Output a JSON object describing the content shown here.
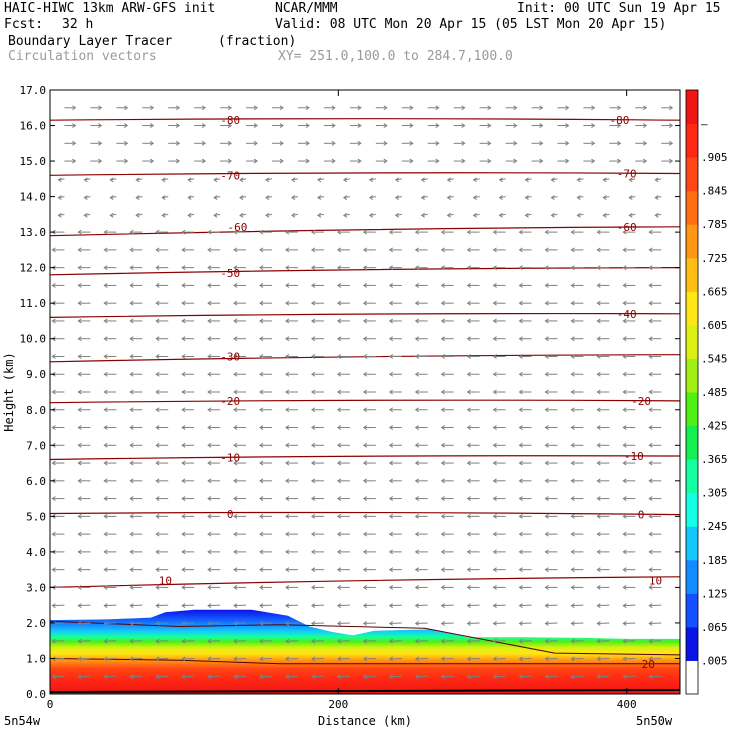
{
  "header": {
    "model": "HAIC-HIWC 13km ARW-GFS init",
    "org": "NCAR/MMM",
    "init": "Init: 00 UTC Sun 19 Apr 15",
    "fcst_label": "Fcst:",
    "fcst_value": "32 h",
    "valid": "Valid: 08 UTC Mon 20 Apr 15 (05 LST Mon 20 Apr 15)",
    "field": "Boundary Layer Tracer",
    "units": "(fraction)",
    "vectors": "Circulation vectors",
    "xy": "XY= 251.0,100.0 to 284.7,100.0"
  },
  "chart_data": {
    "type": "heatmap",
    "xlabel": "Distance (km)",
    "ylabel": "Height (km)",
    "xlim": [
      0,
      437
    ],
    "ylim": [
      0,
      17
    ],
    "x_ticks": [
      "0",
      "200",
      "400"
    ],
    "y_ticks": [
      "0.0",
      "1.0",
      "2.0",
      "3.0",
      "4.0",
      "5.0",
      "6.0",
      "7.0",
      "8.0",
      "9.0",
      "10.0",
      "11.0",
      "12.0",
      "13.0",
      "14.0",
      "15.0",
      "16.0",
      "17.0"
    ],
    "x_start_label": "5n54w",
    "x_end_label": "5n50w",
    "colorbar": {
      "labels": [
        ".005",
        ".065",
        ".125",
        ".185",
        ".245",
        ".305",
        ".365",
        ".425",
        ".485",
        ".545",
        ".605",
        ".665",
        ".725",
        ".785",
        ".845",
        ".905",
        "–"
      ],
      "colors": [
        "#ffffff",
        "#0a14e6",
        "#1450ff",
        "#148cff",
        "#14c8ff",
        "#14ffe6",
        "#14ffa0",
        "#14f050",
        "#50f014",
        "#a0f014",
        "#dcf014",
        "#ffe614",
        "#ffbe14",
        "#ff9614",
        "#ff6e14",
        "#ff4614",
        "#ff2814",
        "#f01414"
      ]
    },
    "boundary_top_km": [
      [
        0,
        2.08
      ],
      [
        40,
        2.1
      ],
      [
        70,
        2.15
      ],
      [
        80,
        2.3
      ],
      [
        100,
        2.37
      ],
      [
        140,
        2.37
      ],
      [
        165,
        2.2
      ],
      [
        180,
        1.9
      ],
      [
        195,
        1.75
      ],
      [
        210,
        1.65
      ],
      [
        225,
        1.78
      ],
      [
        245,
        1.8
      ],
      [
        265,
        1.82
      ],
      [
        290,
        1.6
      ],
      [
        330,
        1.6
      ],
      [
        370,
        1.58
      ],
      [
        400,
        1.55
      ],
      [
        437,
        1.55
      ]
    ],
    "isotherms": [
      {
        "t": 10,
        "z": [
          3.0,
          3.3
        ]
      },
      {
        "t": 0,
        "z": [
          5.08,
          5.05
        ]
      },
      {
        "t": -10,
        "z": [
          6.6,
          6.7
        ]
      },
      {
        "t": -20,
        "z": [
          8.2,
          8.25
        ]
      },
      {
        "t": -30,
        "z": [
          9.35,
          9.55
        ]
      },
      {
        "t": -40,
        "z": [
          10.6,
          10.7
        ]
      },
      {
        "t": -50,
        "z": [
          11.8,
          12.0
        ]
      },
      {
        "t": -60,
        "z": [
          12.9,
          13.15
        ]
      },
      {
        "t": -70,
        "z": [
          14.6,
          14.65
        ]
      },
      {
        "t": -80,
        "z": [
          16.15,
          16.15
        ]
      }
    ],
    "isotherm_labels": [
      {
        "text": "10",
        "x": 80,
        "z": 3.2
      },
      {
        "text": "10",
        "x": 420,
        "z": 3.2
      },
      {
        "text": "0",
        "x": 125,
        "z": 5.07
      },
      {
        "text": "0",
        "x": 410,
        "z": 5.05
      },
      {
        "text": "-10",
        "x": 125,
        "z": 6.65
      },
      {
        "text": "-10",
        "x": 405,
        "z": 6.7
      },
      {
        "text": "-20",
        "x": 125,
        "z": 8.25
      },
      {
        "text": "-20",
        "x": 410,
        "z": 8.25
      },
      {
        "text": "-30",
        "x": 125,
        "z": 9.5
      },
      {
        "text": "-40",
        "x": 400,
        "z": 10.7
      },
      {
        "text": "-50",
        "x": 125,
        "z": 11.85
      },
      {
        "text": "-60",
        "x": 130,
        "z": 13.15
      },
      {
        "text": "-60",
        "x": 400,
        "z": 13.15
      },
      {
        "text": "-70",
        "x": 125,
        "z": 14.6
      },
      {
        "text": "-70",
        "x": 400,
        "z": 14.65
      },
      {
        "text": "-80",
        "x": 125,
        "z": 16.15
      },
      {
        "text": "-80",
        "x": 395,
        "z": 16.15
      },
      {
        "text": "20",
        "x": 415,
        "z": 0.85
      }
    ],
    "extra_contours": [
      {
        "z": [
          2.05,
          1.9,
          1.95,
          1.85,
          1.15,
          1.1
        ]
      },
      {
        "z": [
          1.0,
          0.95,
          0.85,
          0.85,
          0.85,
          0.85
        ]
      }
    ]
  }
}
